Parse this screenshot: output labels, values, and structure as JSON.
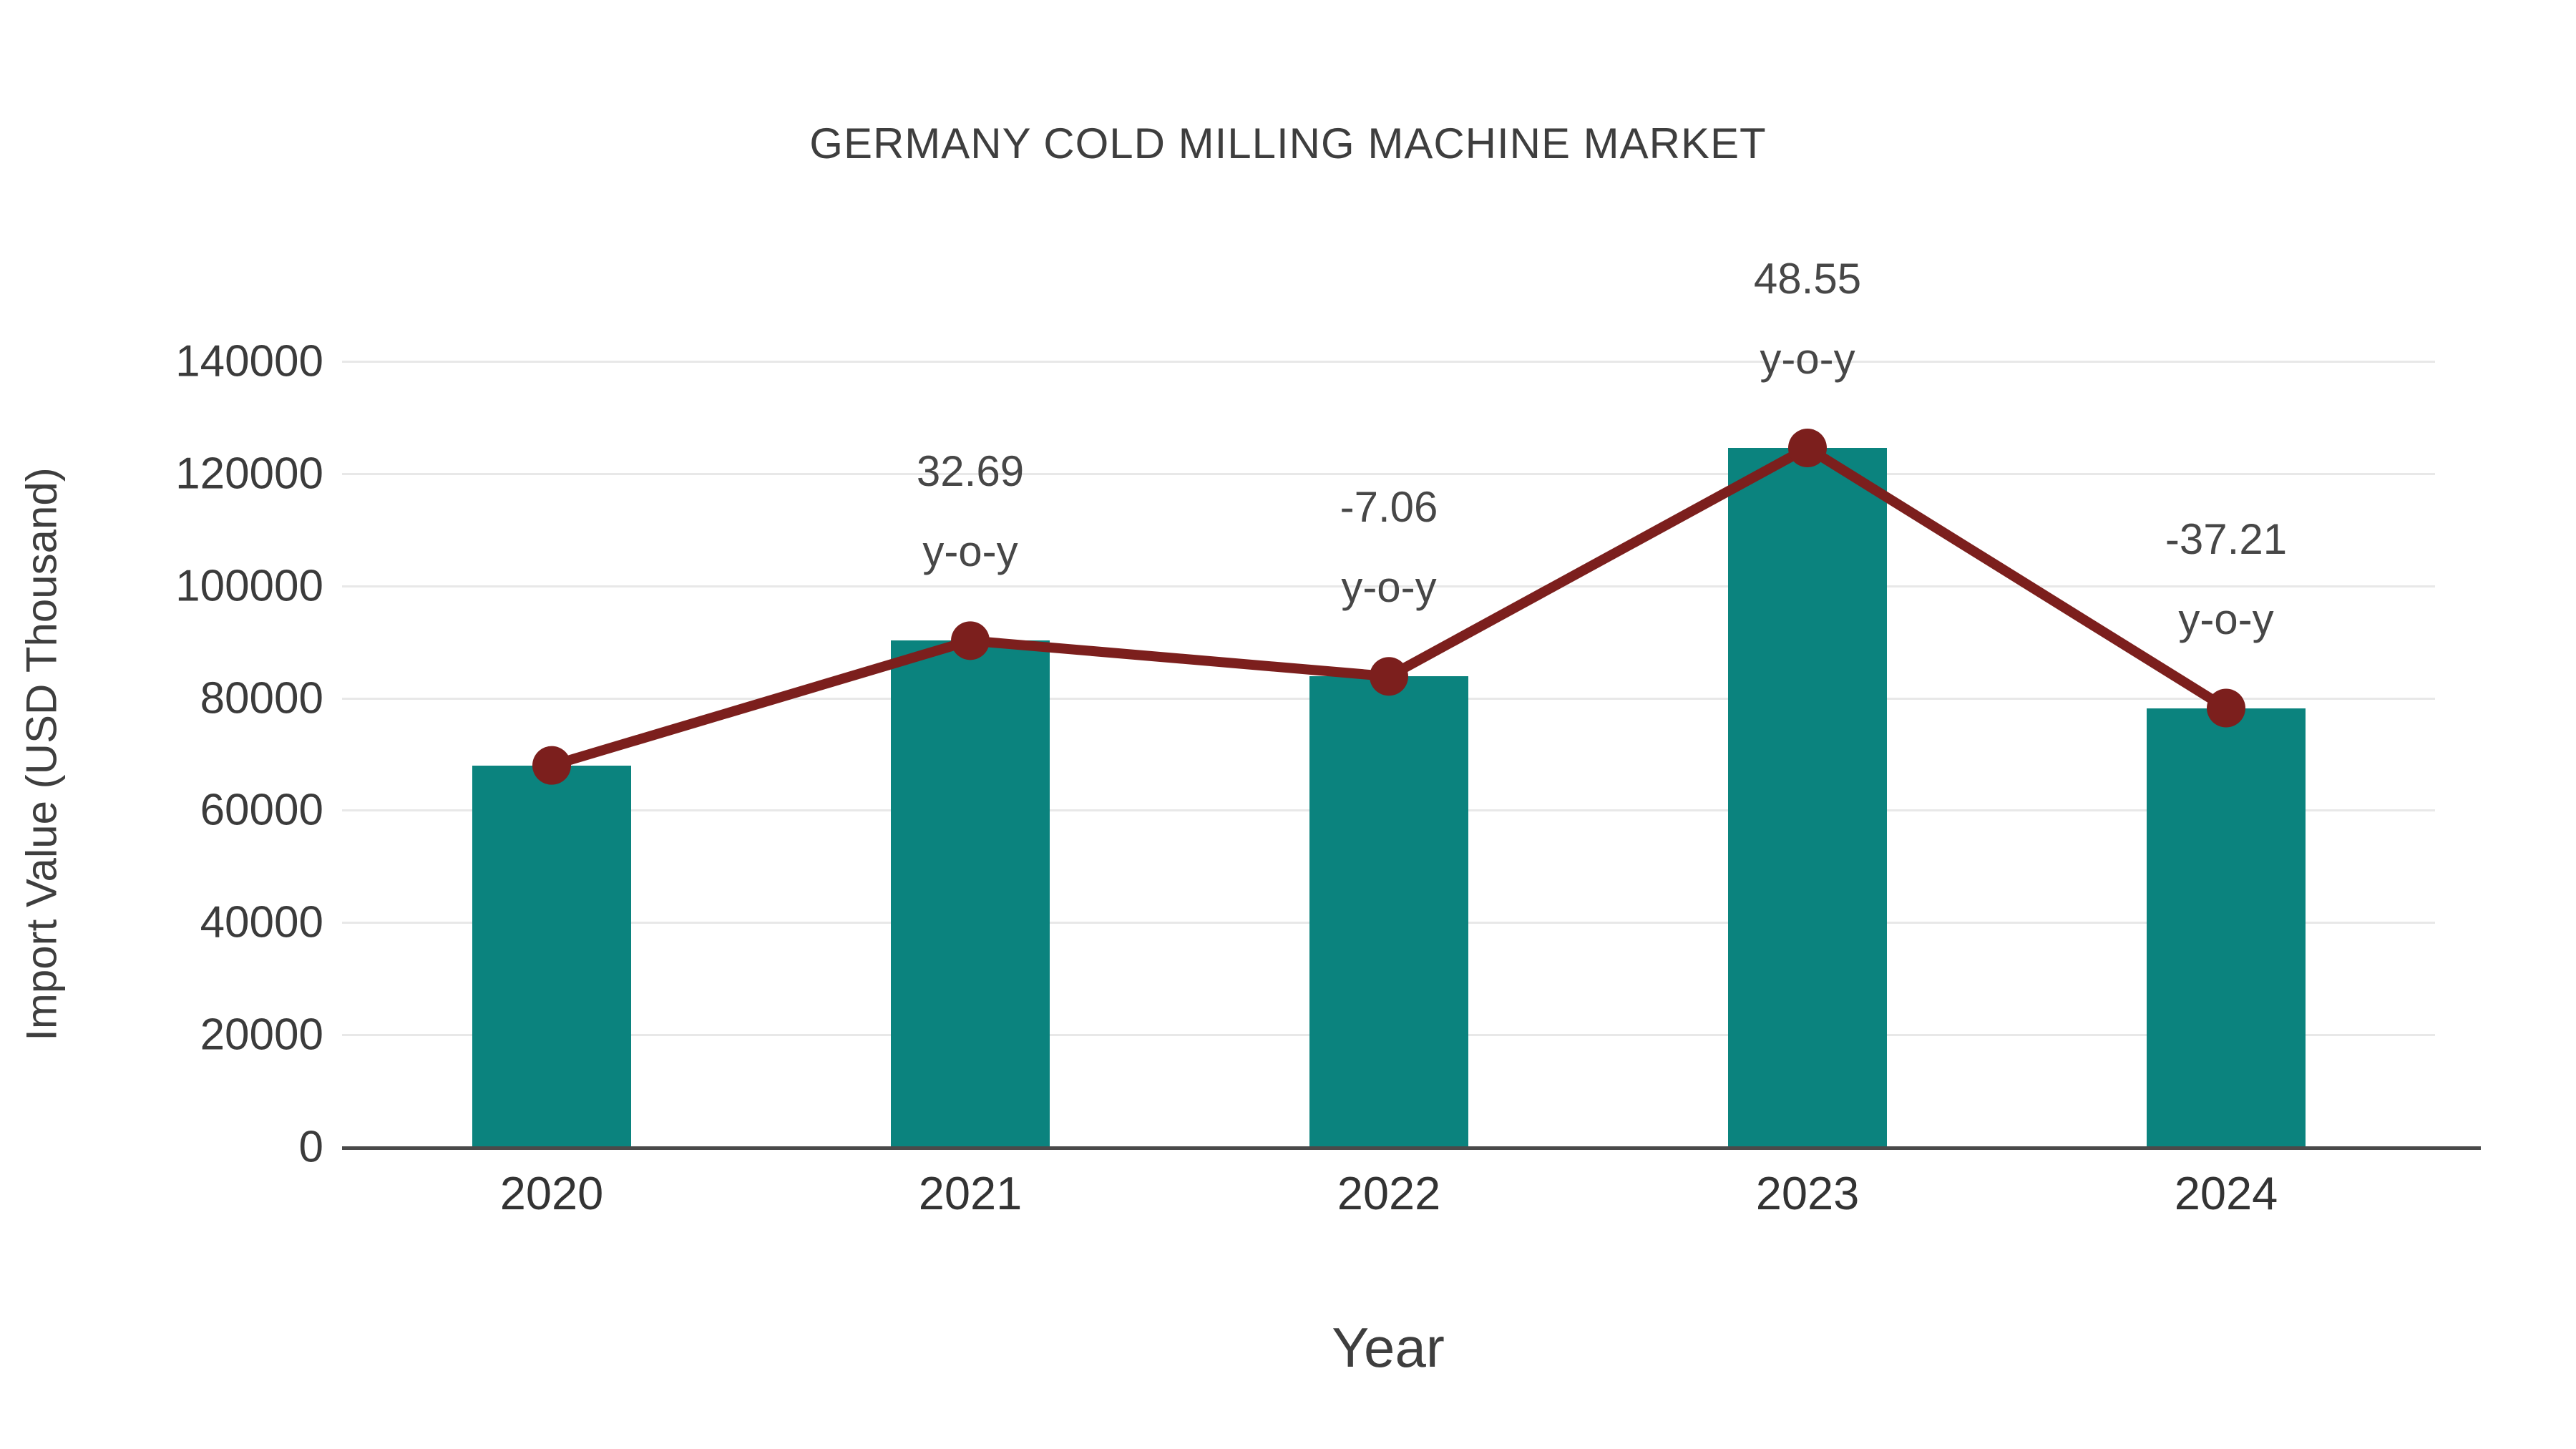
{
  "chart_data": {
    "type": "bar",
    "overlay": "line",
    "title": "GERMANY COLD MILLING MACHINE MARKET",
    "xlabel": "Year",
    "ylabel": "Import Value (USD Thousand)",
    "categories": [
      "2020",
      "2021",
      "2022",
      "2023",
      "2024"
    ],
    "values": [
      68000,
      90230,
      83860,
      124570,
      78220
    ],
    "ylim": [
      0,
      140000
    ],
    "yticks": [
      0,
      20000,
      40000,
      60000,
      80000,
      100000,
      120000,
      140000
    ],
    "grid": true,
    "legend": false,
    "annotations": [
      {
        "category": "2021",
        "lines": [
          "32.69",
          "y-o-y"
        ]
      },
      {
        "category": "2022",
        "lines": [
          "-7.06",
          "y-o-y"
        ]
      },
      {
        "category": "2023",
        "lines": [
          "48.55",
          "y-o-y"
        ]
      },
      {
        "category": "2024",
        "lines": [
          "-37.21",
          "y-o-y"
        ]
      }
    ]
  },
  "colors": {
    "bar": "#0b837e",
    "line": "#7c1f1d",
    "marker": "#7c1f1d",
    "grid": "#e8e8e8",
    "axis": "#4a4a4a",
    "text": "#3e3e3e",
    "background": "#ffffff"
  }
}
